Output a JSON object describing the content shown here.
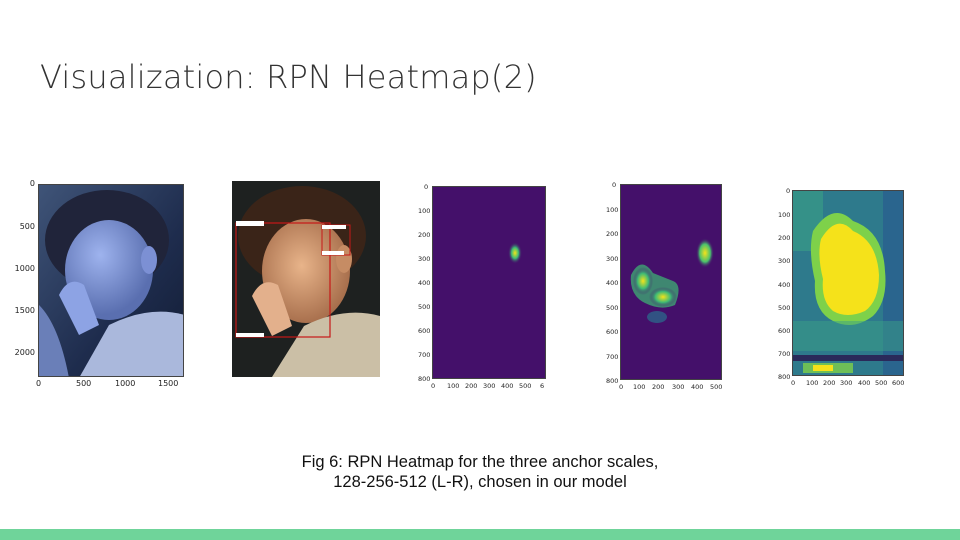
{
  "slide": {
    "title": "Visualization: RPN Heatmap(2)",
    "caption": "Fig 6: RPN Heatmap for the three anchor scales, 128-256-512 (L-R), chosen in our model",
    "accent_color": "#6fd49a"
  },
  "figures": {
    "fig1": {
      "xticks": [
        "0",
        "500",
        "1000",
        "1500"
      ],
      "yticks": [
        "0",
        "500",
        "1000",
        "1500",
        "2000"
      ]
    },
    "fig3": {
      "xticks": [
        "0",
        "100",
        "200",
        "300",
        "400",
        "500",
        "6"
      ],
      "yticks": [
        "0",
        "100",
        "200",
        "300",
        "400",
        "500",
        "600",
        "700",
        "800"
      ]
    },
    "fig4": {
      "xticks": [
        "0",
        "100",
        "200",
        "300",
        "400",
        "500"
      ],
      "yticks": [
        "0",
        "100",
        "200",
        "300",
        "400",
        "500",
        "600",
        "700",
        "800"
      ]
    },
    "fig5": {
      "xticks": [
        "0",
        "100",
        "200",
        "300",
        "400",
        "500",
        "600"
      ],
      "yticks": [
        "0",
        "100",
        "200",
        "300",
        "400",
        "500",
        "600",
        "700",
        "800"
      ]
    }
  },
  "colors": {
    "viridis_dark": "#44106a",
    "viridis_green": "#2a9a8a",
    "viridis_yellow": "#f5e21a"
  }
}
